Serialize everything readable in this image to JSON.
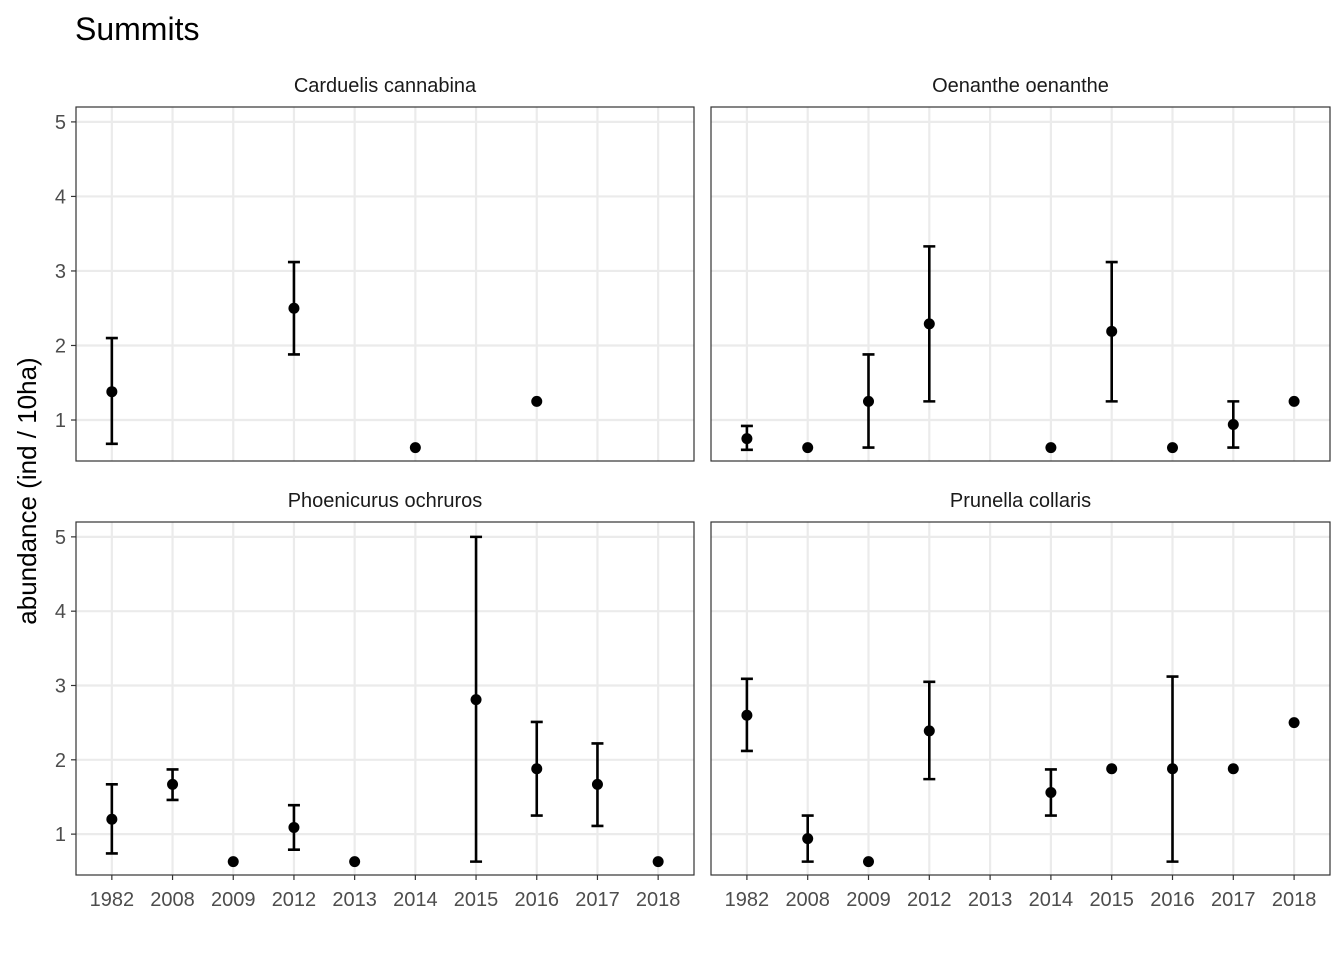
{
  "chart_data": {
    "type": "scatter",
    "title": "Summits",
    "ylabel": "abundance (ind / 10ha)",
    "xlabel": "",
    "categories": [
      "1982",
      "2008",
      "2009",
      "2012",
      "2013",
      "2014",
      "2015",
      "2016",
      "2017",
      "2018"
    ],
    "ylim": [
      0.45,
      5.2
    ],
    "yticks": [
      1,
      2,
      3,
      4,
      5
    ],
    "grid": true,
    "legend": "none",
    "panels": [
      {
        "title": "Carduelis cannabina",
        "points": [
          {
            "year": "1982",
            "y": 1.38,
            "lo": 0.68,
            "hi": 2.1
          },
          {
            "year": "2012",
            "y": 2.5,
            "lo": 1.88,
            "hi": 3.12
          },
          {
            "year": "2014",
            "y": 0.63
          },
          {
            "year": "2016",
            "y": 1.25
          }
        ]
      },
      {
        "title": "Oenanthe oenanthe",
        "points": [
          {
            "year": "1982",
            "y": 0.75,
            "lo": 0.6,
            "hi": 0.92
          },
          {
            "year": "2008",
            "y": 0.63
          },
          {
            "year": "2009",
            "y": 1.25,
            "lo": 0.63,
            "hi": 1.88
          },
          {
            "year": "2012",
            "y": 2.29,
            "lo": 1.25,
            "hi": 3.33
          },
          {
            "year": "2014",
            "y": 0.63
          },
          {
            "year": "2015",
            "y": 2.19,
            "lo": 1.25,
            "hi": 3.12
          },
          {
            "year": "2016",
            "y": 0.63
          },
          {
            "year": "2017",
            "y": 0.94,
            "lo": 0.63,
            "hi": 1.25
          },
          {
            "year": "2018",
            "y": 1.25
          }
        ]
      },
      {
        "title": "Phoenicurus ochruros",
        "points": [
          {
            "year": "1982",
            "y": 1.2,
            "lo": 0.74,
            "hi": 1.67
          },
          {
            "year": "2008",
            "y": 1.67,
            "lo": 1.46,
            "hi": 1.87
          },
          {
            "year": "2009",
            "y": 0.63
          },
          {
            "year": "2012",
            "y": 1.09,
            "lo": 0.79,
            "hi": 1.39
          },
          {
            "year": "2013",
            "y": 0.63
          },
          {
            "year": "2015",
            "y": 2.81,
            "lo": 0.63,
            "hi": 5.0
          },
          {
            "year": "2016",
            "y": 1.88,
            "lo": 1.25,
            "hi": 2.51
          },
          {
            "year": "2017",
            "y": 1.67,
            "lo": 1.11,
            "hi": 2.22
          },
          {
            "year": "2018",
            "y": 0.63
          }
        ]
      },
      {
        "title": "Prunella collaris",
        "points": [
          {
            "year": "1982",
            "y": 2.6,
            "lo": 2.12,
            "hi": 3.09
          },
          {
            "year": "2008",
            "y": 0.94,
            "lo": 0.63,
            "hi": 1.25
          },
          {
            "year": "2009",
            "y": 0.63
          },
          {
            "year": "2012",
            "y": 2.39,
            "lo": 1.74,
            "hi": 3.05
          },
          {
            "year": "2014",
            "y": 1.56,
            "lo": 1.25,
            "hi": 1.87
          },
          {
            "year": "2015",
            "y": 1.88
          },
          {
            "year": "2016",
            "y": 1.88,
            "lo": 0.63,
            "hi": 3.12
          },
          {
            "year": "2017",
            "y": 1.88
          },
          {
            "year": "2018",
            "y": 2.5
          }
        ]
      }
    ]
  }
}
